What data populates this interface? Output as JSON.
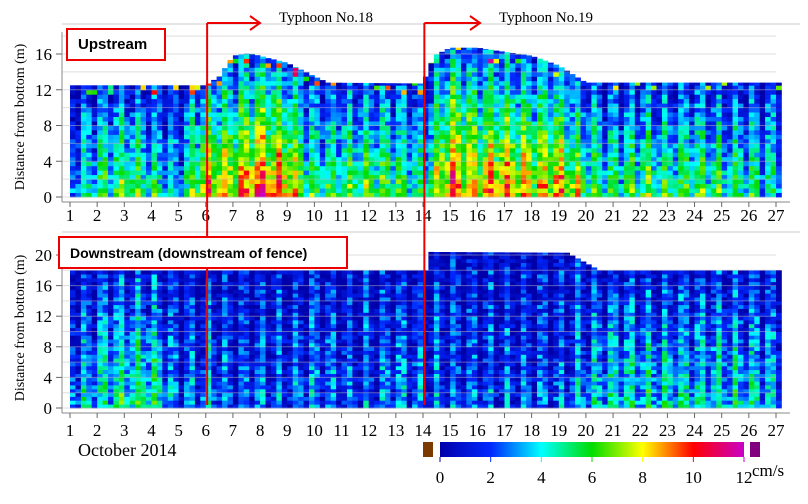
{
  "chart_data": [
    {
      "type": "heatmap",
      "panel": "Upstream",
      "ylabel": "Distance from bottom (m)",
      "ylim": [
        0,
        18
      ],
      "yticks": [
        0,
        4,
        8,
        12,
        16
      ],
      "xlim": [
        1,
        27
      ],
      "xticks": [
        1,
        2,
        3,
        4,
        5,
        6,
        7,
        8,
        9,
        10,
        11,
        12,
        13,
        14,
        15,
        16,
        17,
        18,
        19,
        20,
        21,
        22,
        23,
        24,
        25,
        26,
        27
      ],
      "grid": true,
      "surface_height_m": {
        "days": [
          1,
          6,
          6.5,
          7,
          7.6,
          9,
          10,
          10.5,
          14,
          14.4,
          15,
          16,
          18,
          19,
          20,
          27
        ],
        "values": [
          12.5,
          12.5,
          13.5,
          15.8,
          16.1,
          15,
          13.5,
          12.8,
          12.7,
          15.8,
          16.7,
          16.7,
          15.8,
          14.7,
          12.8,
          12.8
        ]
      },
      "near_bottom_speed_cm_s": {
        "days": [
          1,
          2,
          3,
          4,
          5,
          6,
          7,
          8,
          9,
          10,
          11,
          12,
          13,
          14,
          15,
          16,
          17,
          18,
          19,
          20,
          21,
          22,
          23,
          24,
          25,
          26,
          27
        ],
        "values": [
          3,
          5,
          6,
          5,
          3,
          9,
          8,
          10,
          9,
          5,
          6,
          6,
          6,
          4,
          10,
          8,
          9,
          8,
          9,
          6,
          5,
          6,
          5,
          6,
          5,
          5,
          4
        ]
      }
    },
    {
      "type": "heatmap",
      "panel": "Downstream (downstream of fence)",
      "ylabel": "Distance from bottom (m)",
      "ylim": [
        0,
        21
      ],
      "yticks": [
        0,
        4,
        8,
        12,
        16,
        20
      ],
      "xlim": [
        1,
        27
      ],
      "xticks": [
        1,
        2,
        3,
        4,
        5,
        6,
        7,
        8,
        9,
        10,
        11,
        12,
        13,
        14,
        15,
        16,
        17,
        18,
        19,
        20,
        21,
        22,
        23,
        24,
        25,
        26,
        27
      ],
      "grid": true,
      "surface_height_m": {
        "days": [
          1,
          14.1,
          14.3,
          19.3,
          20.5,
          27
        ],
        "values": [
          18,
          18,
          20.4,
          20.3,
          18,
          18
        ]
      },
      "near_bottom_speed_cm_s": {
        "days": [
          1,
          2,
          3,
          4,
          5,
          6,
          7,
          8,
          9,
          10,
          11,
          12,
          13,
          14,
          15,
          16,
          17,
          18,
          19,
          20,
          21,
          22,
          23,
          24,
          25,
          26,
          27
        ],
        "values": [
          3,
          4,
          5,
          5,
          2,
          3,
          2,
          2,
          2,
          3,
          2,
          2,
          3,
          2,
          2,
          2,
          2,
          2,
          2,
          3,
          4,
          4,
          4,
          4,
          4,
          4,
          3
        ]
      }
    }
  ],
  "labels": {
    "upstream": "Upstream",
    "downstream": "Downstream (downstream of fence)",
    "typhoon18": "Typhoon No.18",
    "typhoon19": "Typhoon No.19",
    "month": "October 2014"
  },
  "typhoon_start_days": {
    "typhoon18": 6.05,
    "typhoon19": 14.05
  },
  "colorbar": {
    "ticks": [
      "0",
      "2",
      "4",
      "6",
      "8",
      "10",
      "12"
    ],
    "min": 0,
    "max": 12,
    "unit": "cm/s",
    "under_color": "#7a3a00",
    "over_color": "#800080",
    "colormap": "jet (blue-cyan-green-yellow-red-magenta)"
  }
}
